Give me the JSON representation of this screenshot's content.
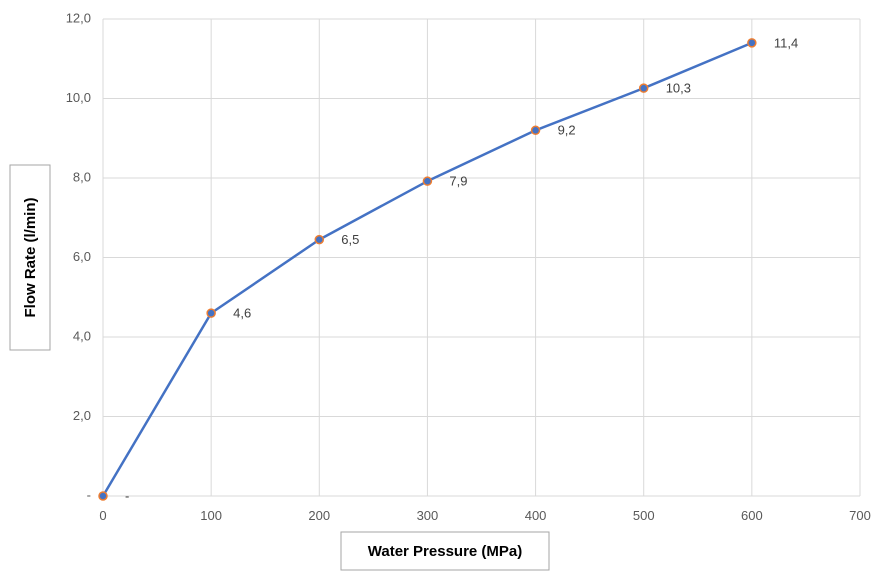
{
  "chart_data": {
    "type": "line",
    "xlabel": "Water Pressure (MPa)",
    "ylabel": "Flow Rate (l/min)",
    "xlim": [
      0,
      700
    ],
    "ylim": [
      0,
      12
    ],
    "x_ticks": [
      "0",
      "100",
      "200",
      "300",
      "400",
      "500",
      "600",
      "700"
    ],
    "y_ticks": [
      "-",
      "2,0",
      "4,0",
      "6,0",
      "8,0",
      "10,0",
      "12,0"
    ],
    "grid": true,
    "colors": {
      "line": "#4472c4",
      "marker": "#ed7d31",
      "grid": "#d9d9d9"
    },
    "series": [
      {
        "x": [
          0,
          100,
          200,
          300,
          400,
          500,
          600
        ],
        "y": [
          0,
          4.6,
          6.45,
          7.92,
          9.2,
          10.26,
          11.4
        ],
        "labels": [
          "-",
          "4,6",
          "6,5",
          "7,9",
          "9,2",
          "10,3",
          "11,4"
        ]
      }
    ]
  }
}
